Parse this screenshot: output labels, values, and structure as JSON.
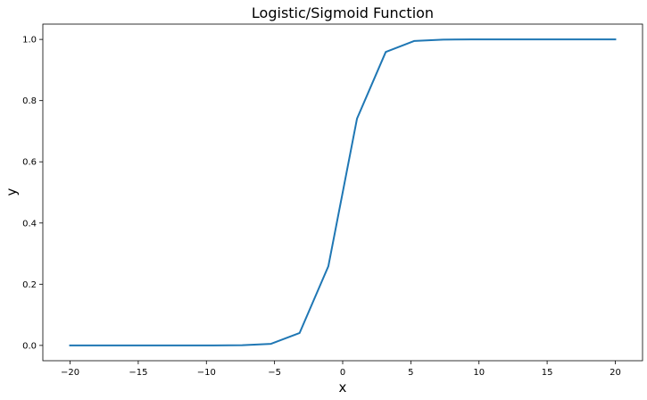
{
  "chart_data": {
    "type": "line",
    "title": "Logistic/Sigmoid Function",
    "xlabel": "x",
    "ylabel": "y",
    "xlim": [
      -22,
      22
    ],
    "ylim": [
      -0.05,
      1.05
    ],
    "x_ticks": [
      -20,
      -15,
      -10,
      -5,
      0,
      5,
      10,
      15,
      20
    ],
    "x_tick_labels": [
      "−20",
      "−15",
      "−10",
      "−5",
      "0",
      "5",
      "10",
      "15",
      "20"
    ],
    "y_ticks": [
      0.0,
      0.2,
      0.4,
      0.6,
      0.8,
      1.0
    ],
    "y_tick_labels": [
      "0.0",
      "0.2",
      "0.4",
      "0.6",
      "0.8",
      "1.0"
    ],
    "grid": false,
    "line_color": "#1f77b4",
    "series": [
      {
        "x": [
          -20,
          -17.89,
          -15.79,
          -13.68,
          -11.58,
          -9.47,
          -7.37,
          -5.26,
          -3.16,
          -1.05,
          1.05,
          3.16,
          5.26,
          7.37,
          9.47,
          11.58,
          13.68,
          15.79,
          17.89,
          20
        ],
        "y": [
          0.0,
          0.0,
          0.0,
          0.0,
          0.0,
          0.0001,
          0.0006,
          0.0052,
          0.0408,
          0.259,
          0.741,
          0.959,
          0.995,
          0.9994,
          0.9999,
          1.0,
          1.0,
          1.0,
          1.0,
          1.0
        ]
      }
    ]
  }
}
